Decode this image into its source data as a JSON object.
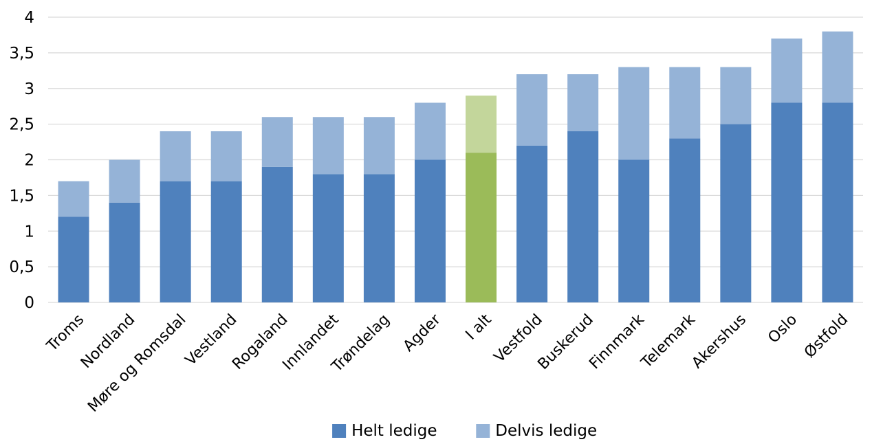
{
  "chart_data": {
    "type": "bar",
    "stacked": true,
    "categories": [
      "Troms",
      "Nordland",
      "Møre og Romsdal",
      "Vestland",
      "Rogaland",
      "Innlandet",
      "Trøndelag",
      "Agder",
      "I alt",
      "Vestfold",
      "Buskerud",
      "Finnmark",
      "Telemark",
      "Akershus",
      "Oslo",
      "Østfold"
    ],
    "series": [
      {
        "name": "Helt ledige",
        "color": "#4f81bd",
        "values": [
          1.2,
          1.4,
          1.7,
          1.7,
          1.9,
          1.8,
          1.8,
          2.0,
          2.1,
          2.2,
          2.4,
          2.0,
          2.3,
          2.5,
          2.8,
          2.8
        ]
      },
      {
        "name": "Delvis ledige",
        "color": "#95b3d7",
        "values": [
          0.5,
          0.6,
          0.7,
          0.7,
          0.7,
          0.8,
          0.8,
          0.8,
          0.8,
          1.0,
          0.8,
          1.3,
          1.0,
          0.8,
          0.9,
          1.0
        ]
      }
    ],
    "highlight": {
      "category": "I alt",
      "colors": [
        "#9bbb59",
        "#c3d69b"
      ]
    },
    "yticks": [
      "0",
      "0,5",
      "1",
      "1,5",
      "2",
      "2,5",
      "3",
      "3,5",
      "4"
    ],
    "ylim": [
      0,
      4
    ],
    "grid": true,
    "legend_position": "bottom",
    "title": "",
    "xlabel": "",
    "ylabel": ""
  }
}
